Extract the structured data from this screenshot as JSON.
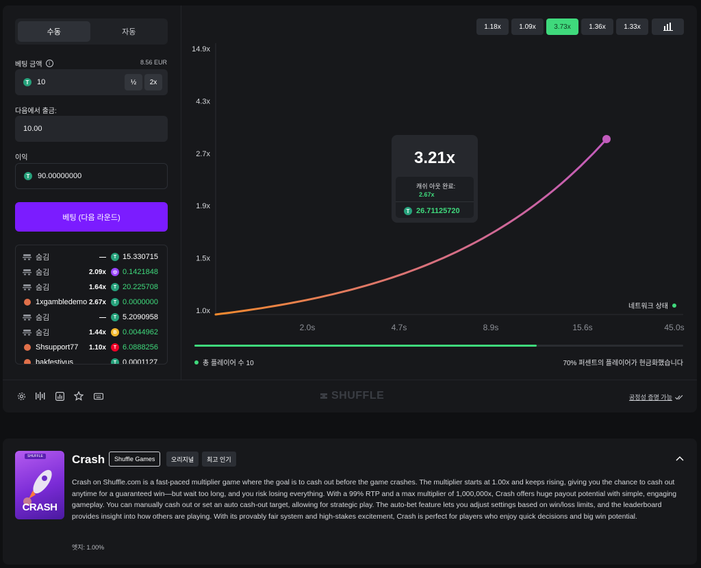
{
  "mode_tabs": {
    "manual": "수동",
    "auto": "자동"
  },
  "bet_amount": {
    "label": "베팅 금액",
    "balance": "8.56 EUR",
    "value": "10",
    "half": "½",
    "double": "2x"
  },
  "cashout_at": {
    "label": "다음에서 출금:",
    "value": "10.00"
  },
  "profit": {
    "label": "이익",
    "value": "90.00000000"
  },
  "bet_button": "베팅 (다음 라운드)",
  "bets": [
    {
      "user": "숨김",
      "multiplier": "—",
      "currency": "T",
      "currency_color": "#26a17b",
      "amount": "15.330715",
      "won": false,
      "named": false
    },
    {
      "user": "숨김",
      "multiplier": "2.09x",
      "currency": "◎",
      "currency_color": "#9945ff",
      "amount": "0.1421848",
      "won": true,
      "named": false
    },
    {
      "user": "숨김",
      "multiplier": "1.64x",
      "currency": "T",
      "currency_color": "#26a17b",
      "amount": "20.225708",
      "won": true,
      "named": false
    },
    {
      "user": "1xgambledemo",
      "multiplier": "2.67x",
      "currency": "T",
      "currency_color": "#26a17b",
      "amount": "0.0000000",
      "won": true,
      "named": true
    },
    {
      "user": "숨김",
      "multiplier": "—",
      "currency": "T",
      "currency_color": "#26a17b",
      "amount": "5.2090958",
      "won": false,
      "named": false
    },
    {
      "user": "숨김",
      "multiplier": "1.44x",
      "currency": "B",
      "currency_color": "#f3ba2f",
      "amount": "0.0044962",
      "won": true,
      "named": false
    },
    {
      "user": "Shsupport77",
      "multiplier": "1.10x",
      "currency": "T",
      "currency_color": "#ef0027",
      "amount": "6.0888256",
      "won": true,
      "named": true
    },
    {
      "user": "bakfestivus",
      "multiplier": "",
      "currency": "T",
      "currency_color": "#26a17b",
      "amount": "0.0001127",
      "won": false,
      "named": true
    }
  ],
  "history": [
    "1.18x",
    "1.09x",
    "3.73x",
    "1.36x",
    "1.33x"
  ],
  "history_highlight_index": 2,
  "chart_data": {
    "type": "line",
    "y_ticks": [
      "14.9x",
      "4.3x",
      "2.7x",
      "1.9x",
      "1.5x",
      "1.0x"
    ],
    "x_ticks": [
      "2.0s",
      "4.7s",
      "8.9s",
      "15.6s",
      "45.0s"
    ],
    "current_multiplier": 3.21,
    "line_color_start": "#f28a2e",
    "line_color_end": "#c25bbd"
  },
  "tooltip": {
    "multiplier": "3.21x",
    "label": "캐쉬 아웃 완료:",
    "cashed_at": "2.67x",
    "payout": "26.71125720"
  },
  "network_status": "네트워크 상태",
  "round_progress": 0.7,
  "players_label": "총 플레이어 수 10",
  "cashed_percent_label": "70% 퍼센트의 플레이어가 현금화했습니다",
  "brand": "SHUFFLE",
  "fairness_link": "공정성 증명 가능",
  "game_info": {
    "thumb_tag": "SHUFFLE",
    "thumb_title": "CRASH",
    "title": "Crash",
    "chips": [
      "Shuffle Games",
      "오리지널",
      "최고 인기"
    ],
    "description": "Crash on Shuffle.com is a fast-paced multiplier game where the goal is to cash out before the game crashes. The multiplier starts at 1.00x and keeps rising, giving you the chance to cash out anytime for a guaranteed win—but wait too long, and you risk losing everything. With a 99% RTP and a max multiplier of 1,000,000x, Crash offers huge payout potential with simple, engaging gameplay. You can manually cash out or set an auto cash-out target, allowing for strategic play. The auto-bet feature lets you adjust settings based on win/loss limits, and the leaderboard provides insight into how others are playing. With its provably fair system and high-stakes excitement, Crash is perfect for players who enjoy quick decisions and big win potential.",
    "edge": "엣지: 1.00%"
  }
}
